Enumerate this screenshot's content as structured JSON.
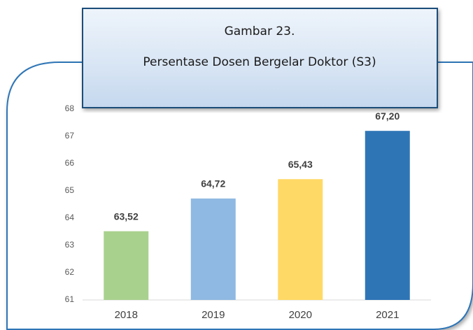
{
  "chart_data": {
    "type": "bar",
    "title": "Gambar 23.",
    "subtitle": "Persentase Dosen Bergelar Doktor (S3)",
    "categories": [
      "2018",
      "2019",
      "2020",
      "2021"
    ],
    "values": [
      63.52,
      64.72,
      65.43,
      67.2
    ],
    "value_labels": [
      "63,52",
      "64,72",
      "65,43",
      "67,20"
    ],
    "colors": [
      "#a9d18e",
      "#8fb9e2",
      "#ffd966",
      "#2e75b6"
    ],
    "ylim": [
      61,
      68
    ],
    "yticks": [
      61,
      62,
      63,
      64,
      65,
      66,
      67,
      68
    ],
    "grid": false
  }
}
